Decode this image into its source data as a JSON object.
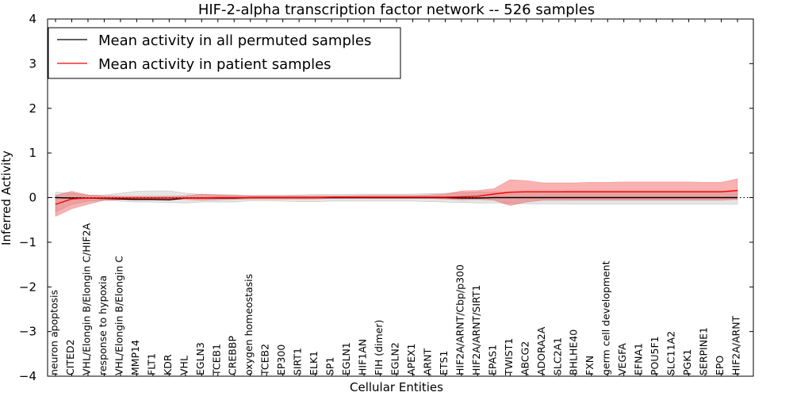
{
  "chart_data": {
    "type": "line",
    "title": "HIF-2-alpha transcription factor network -- 526 samples",
    "xlabel": "Cellular Entities",
    "ylabel": "Inferred Activity",
    "ylim": [
      -4,
      4
    ],
    "yticks": [
      -4,
      -3,
      -2,
      -1,
      0,
      1,
      2,
      3,
      4
    ],
    "ytick_labels": [
      "−4",
      "−3",
      "−2",
      "−1",
      "0",
      "1",
      "2",
      "3",
      "4"
    ],
    "grid": false,
    "legend_position": "top-left",
    "categories": [
      "neuron apoptosis",
      "CITED2",
      "VHL/Elongin B/Elongin C/HIF2A",
      "response to hypoxia",
      "VHL/Elongin B/Elongin C",
      "MMP14",
      "FLT1",
      "KDR",
      "VHL",
      "EGLN3",
      "TCEB1",
      "CREBBP",
      "oxygen homeostasis",
      "TCEB2",
      "EP300",
      "SIRT1",
      "ELK1",
      "SP1",
      "EGLN1",
      "HIF1AN",
      "FIH (dimer)",
      "EGLN2",
      "APEX1",
      "ARNT",
      "ETS1",
      "HIF2A/ARNT/Cbp/p300",
      "HIF2A/ARNT/SIRT1",
      "EPAS1",
      "TWIST1",
      "ABCG2",
      "ADORA2A",
      "SLC2A1",
      "BHLHE40",
      "FXN",
      "germ cell development",
      "VEGFA",
      "EFNA1",
      "POU5F1",
      "SLC11A2",
      "PGK1",
      "SERPINE1",
      "EPO",
      "HIF2A/ARNT"
    ],
    "series": [
      {
        "name": "Mean activity in all permuted samples",
        "color": "#000000",
        "values": [
          0.0,
          -0.01,
          -0.01,
          -0.02,
          -0.03,
          -0.04,
          -0.04,
          -0.05,
          -0.01,
          -0.01,
          -0.01,
          -0.01,
          0.0,
          0.0,
          0.0,
          0.0,
          0.0,
          0.0,
          0.0,
          0.0,
          0.0,
          0.0,
          0.0,
          0.0,
          0.0,
          -0.01,
          -0.01,
          0.0,
          0.0,
          0.0,
          0.0,
          0.0,
          0.0,
          0.0,
          0.0,
          0.0,
          0.0,
          0.0,
          0.0,
          0.0,
          0.0,
          0.0,
          0.0
        ],
        "band_low": [
          -0.32,
          -0.15,
          -0.08,
          -0.06,
          -0.08,
          -0.1,
          -0.1,
          -0.11,
          -0.12,
          -0.1,
          -0.1,
          -0.1,
          -0.07,
          -0.07,
          -0.08,
          -0.09,
          -0.09,
          -0.08,
          -0.08,
          -0.08,
          -0.08,
          -0.08,
          -0.08,
          -0.09,
          -0.1,
          -0.11,
          -0.12,
          -0.12,
          -0.13,
          -0.14,
          -0.14,
          -0.14,
          -0.15,
          -0.15,
          -0.15,
          -0.15,
          -0.15,
          -0.15,
          -0.15,
          -0.15,
          -0.15,
          -0.15,
          -0.15
        ],
        "band_high": [
          0.12,
          0.1,
          0.05,
          0.06,
          0.1,
          0.14,
          0.15,
          0.15,
          0.1,
          0.07,
          0.07,
          0.06,
          0.05,
          0.05,
          0.05,
          0.06,
          0.07,
          0.07,
          0.07,
          0.08,
          0.08,
          0.08,
          0.08,
          0.09,
          0.1,
          0.11,
          0.12,
          0.12,
          0.13,
          0.14,
          0.14,
          0.14,
          0.15,
          0.15,
          0.15,
          0.15,
          0.15,
          0.15,
          0.15,
          0.15,
          0.15,
          0.15,
          0.15
        ]
      },
      {
        "name": "Mean activity in patient samples",
        "color": "#ff0000",
        "values": [
          -0.15,
          -0.03,
          -0.01,
          -0.01,
          -0.01,
          -0.01,
          -0.01,
          -0.01,
          -0.01,
          -0.01,
          0.0,
          0.0,
          0.0,
          0.0,
          0.0,
          0.0,
          0.0,
          0.01,
          0.01,
          0.01,
          0.01,
          0.01,
          0.01,
          0.01,
          0.01,
          0.02,
          0.03,
          0.08,
          0.12,
          0.13,
          0.13,
          0.13,
          0.13,
          0.13,
          0.13,
          0.13,
          0.13,
          0.13,
          0.13,
          0.13,
          0.13,
          0.13,
          0.16
        ],
        "band_low": [
          -0.42,
          -0.25,
          -0.15,
          -0.06,
          -0.05,
          -0.05,
          -0.05,
          -0.04,
          -0.04,
          -0.06,
          -0.05,
          -0.04,
          -0.03,
          -0.03,
          -0.03,
          -0.03,
          -0.03,
          -0.02,
          -0.02,
          -0.02,
          -0.02,
          -0.02,
          -0.02,
          -0.02,
          -0.03,
          -0.05,
          -0.04,
          -0.06,
          -0.18,
          -0.1,
          -0.06,
          -0.06,
          -0.06,
          -0.06,
          -0.06,
          -0.06,
          -0.06,
          -0.06,
          -0.06,
          -0.06,
          -0.06,
          -0.06,
          -0.04
        ],
        "band_high": [
          0.05,
          0.14,
          0.06,
          0.04,
          0.03,
          0.03,
          0.03,
          0.03,
          0.04,
          0.08,
          0.06,
          0.05,
          0.04,
          0.04,
          0.04,
          0.04,
          0.04,
          0.04,
          0.04,
          0.05,
          0.05,
          0.05,
          0.05,
          0.06,
          0.08,
          0.15,
          0.16,
          0.2,
          0.4,
          0.38,
          0.33,
          0.33,
          0.33,
          0.34,
          0.34,
          0.35,
          0.35,
          0.35,
          0.35,
          0.35,
          0.34,
          0.34,
          0.42
        ]
      }
    ],
    "reference_line": {
      "y": 0,
      "style": "dotted",
      "color": "#000000"
    }
  }
}
